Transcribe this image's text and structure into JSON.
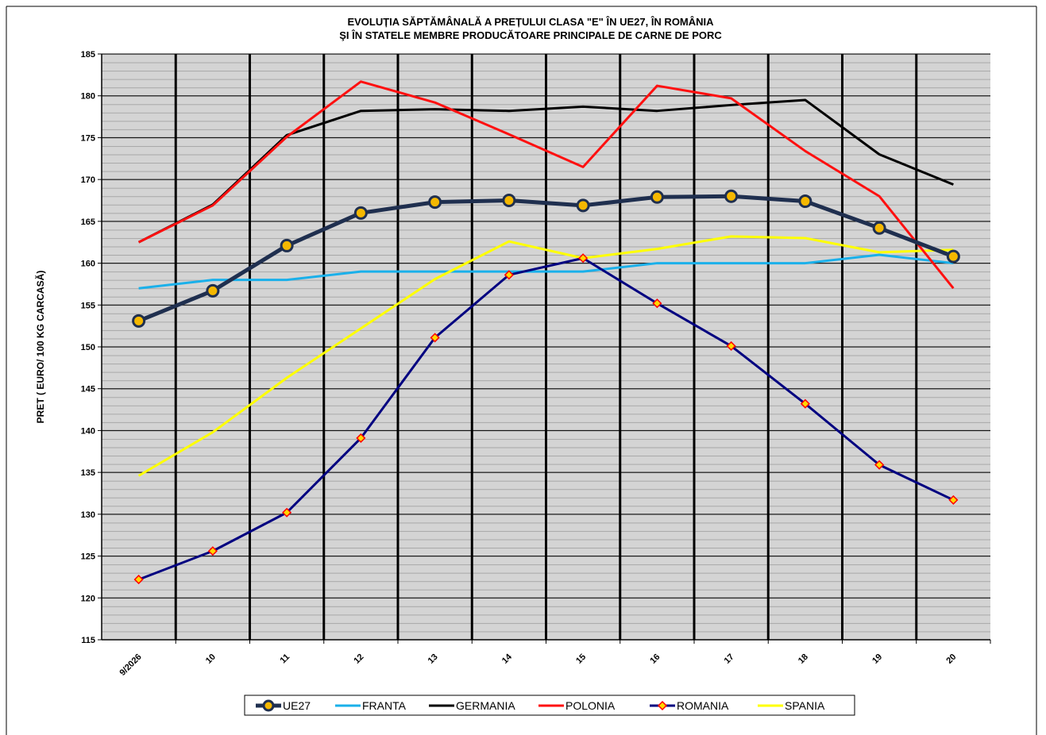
{
  "chart_data": {
    "type": "line",
    "title": "EVOLUȚIA SĂPTĂMÂNALĂ  A PREȚULUI CLASA \"E\"  ÎN  UE27, ÎN ROMÂNIA",
    "subtitle": "ŞI ÎN STATELE MEMBRE PRODUCĂTOARE PRINCIPALE DE CARNE DE PORC",
    "y_label": "PRET ( EURO/ 100 KG CARCASĂ)",
    "categories": [
      "9/2026",
      "10",
      "11",
      "12",
      "13",
      "14",
      "15",
      "16",
      "17",
      "18",
      "19",
      "20"
    ],
    "ylim": [
      115,
      185
    ],
    "yticks": [
      115,
      120,
      125,
      130,
      135,
      140,
      145,
      150,
      155,
      160,
      165,
      170,
      175,
      180,
      185
    ],
    "grid": true,
    "legend": "bottom",
    "series": [
      {
        "name": "UE27",
        "color": "#1f2f4f",
        "marker": "circle",
        "marker_fill": "#f5b800",
        "values": [
          153.1,
          156.7,
          162.1,
          166.0,
          167.3,
          167.5,
          166.9,
          167.9,
          168.0,
          167.4,
          164.2,
          160.8
        ]
      },
      {
        "name": "FRANTA",
        "color": "#1ab0ea",
        "values": [
          157,
          158,
          158,
          159,
          159,
          159,
          159,
          160,
          160,
          160,
          161,
          160
        ]
      },
      {
        "name": "GERMANIA",
        "color": "#000000",
        "values": [
          162.5,
          167.0,
          175.3,
          178.2,
          178.4,
          178.2,
          178.7,
          178.2,
          178.9,
          179.5,
          173.0,
          169.4
        ]
      },
      {
        "name": "POLONIA",
        "color": "#ff1010",
        "values": [
          162.5,
          166.9,
          175.1,
          181.7,
          179.2,
          175.4,
          171.5,
          181.2,
          179.7,
          173.4,
          168.0,
          157.0
        ]
      },
      {
        "name": "ROMANIA",
        "color": "#000080",
        "marker": "diamond",
        "marker_fill": "#ffd800",
        "marker_stroke": "#ff0000",
        "values": [
          122.2,
          125.6,
          130.2,
          139.1,
          151.1,
          158.6,
          160.6,
          155.2,
          150.1,
          143.2,
          135.9,
          131.7
        ]
      },
      {
        "name": "SPANIA",
        "color": "#ffff00",
        "values": [
          134.6,
          139.8,
          146.3,
          152.2,
          158.1,
          162.6,
          160.6,
          161.7,
          163.2,
          163.0,
          161.3,
          161.6
        ]
      }
    ]
  }
}
